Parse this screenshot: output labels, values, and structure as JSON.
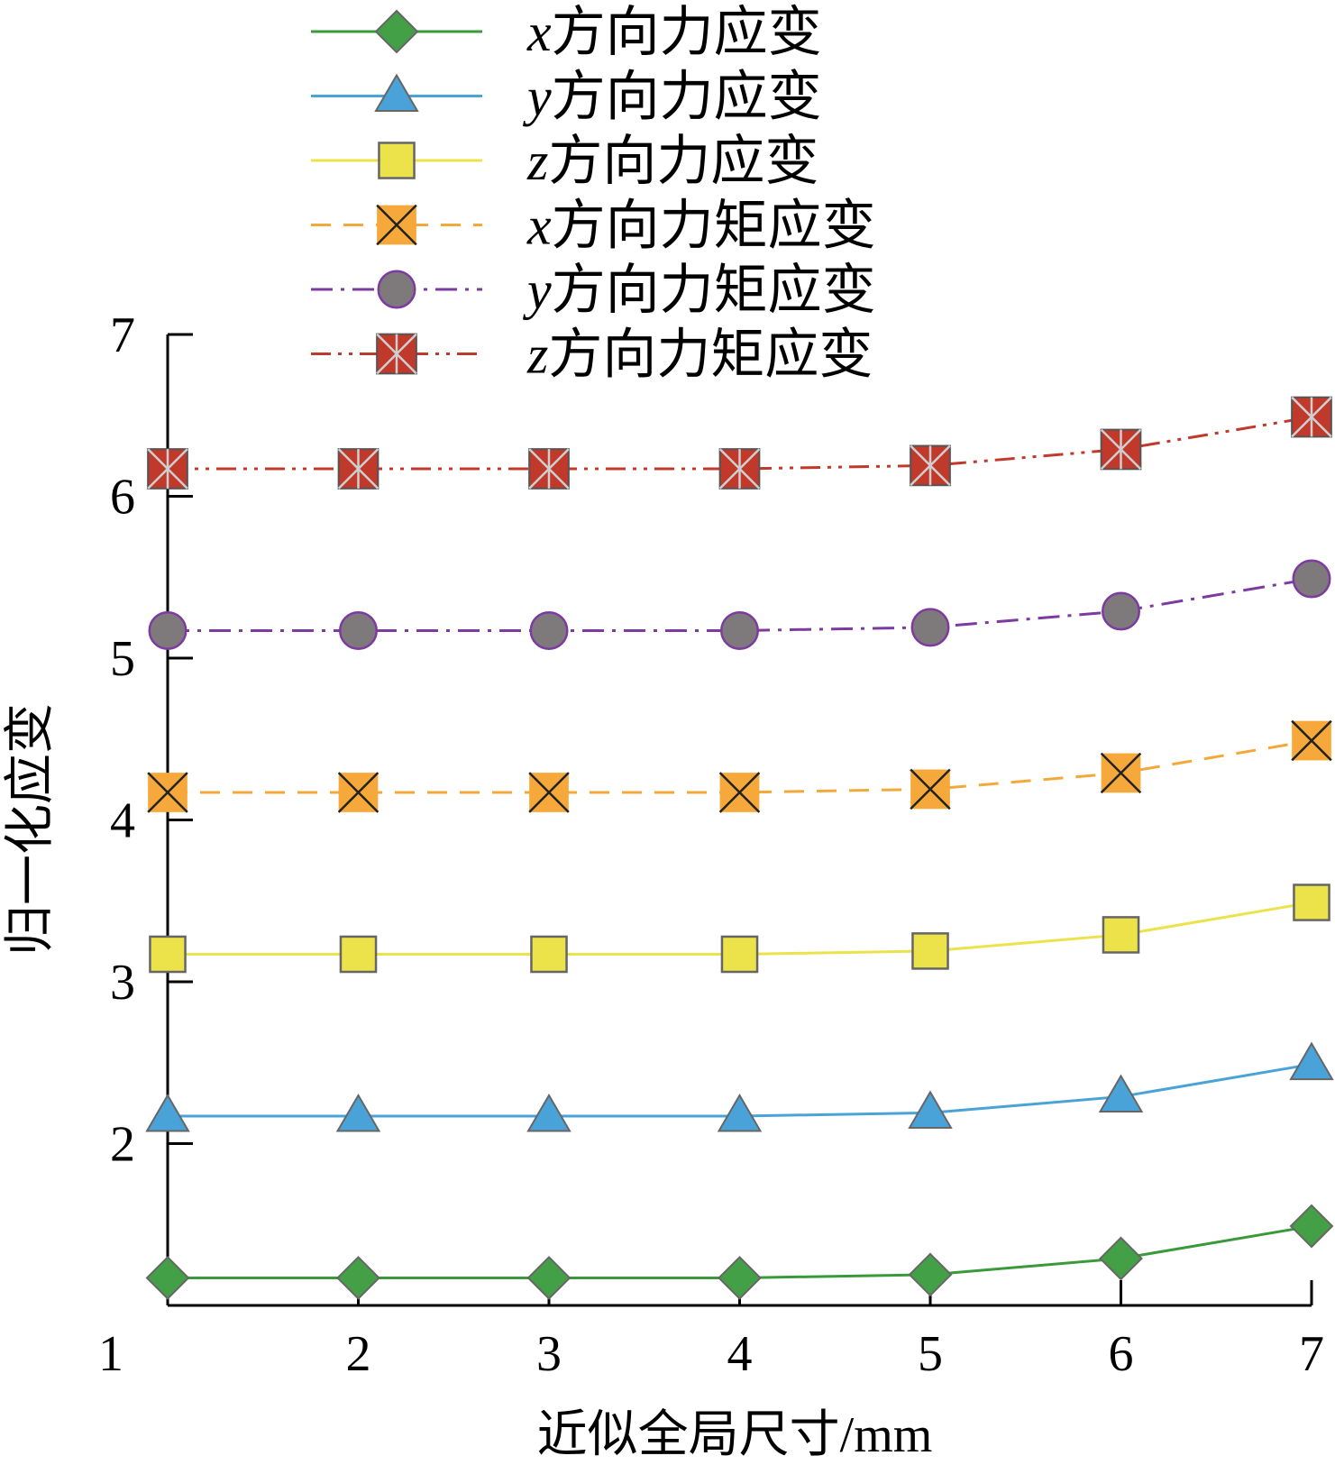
{
  "chart_data": {
    "type": "line",
    "xlabel": "近似全局尺寸/mm",
    "ylabel": "归一化应变",
    "x_ticks": [
      "1",
      "2",
      "3",
      "4",
      "5",
      "6",
      "7"
    ],
    "y_ticks": [
      "2",
      "3",
      "4",
      "5",
      "6",
      "7"
    ],
    "xlim": [
      1,
      7
    ],
    "ylim": [
      1,
      7
    ],
    "grid": false,
    "legend_position": "top",
    "x": [
      1,
      2,
      3,
      4,
      5,
      6,
      7
    ],
    "series": [
      {
        "name": "x方向力应变",
        "var": "x",
        "rest": "方向力应变",
        "color": "#3a9a3a",
        "marker": "diamond",
        "marker_fill": "#43a046",
        "dash": "solid",
        "values": [
          1.17,
          1.17,
          1.17,
          1.17,
          1.19,
          1.29,
          1.49
        ]
      },
      {
        "name": "y方向力应变",
        "var": "y",
        "rest": "方向力应变",
        "color": "#4aa3d8",
        "marker": "triangle",
        "marker_fill": "#4aa3d8",
        "dash": "solid",
        "values": [
          2.17,
          2.17,
          2.17,
          2.17,
          2.19,
          2.29,
          2.49
        ]
      },
      {
        "name": "z方向力应变",
        "var": "z",
        "rest": "方向力应变",
        "color": "#ece34a",
        "marker": "square",
        "marker_fill": "#ece34a",
        "dash": "solid",
        "values": [
          3.17,
          3.17,
          3.17,
          3.17,
          3.19,
          3.29,
          3.49
        ]
      },
      {
        "name": "x方向力矩应变",
        "var": "x",
        "rest": "方向力矩应变",
        "color": "#f3a93a",
        "marker": "x-square",
        "marker_fill": "#f6a93a",
        "dash": "dashed",
        "values": [
          4.17,
          4.17,
          4.17,
          4.17,
          4.19,
          4.29,
          4.49
        ]
      },
      {
        "name": "y方向力矩应变",
        "var": "y",
        "rest": "方向力矩应变",
        "color": "#7d3aa1",
        "marker": "circle",
        "marker_fill": "#7e7a7c",
        "dash": "dashdot",
        "values": [
          5.17,
          5.17,
          5.17,
          5.17,
          5.19,
          5.29,
          5.49
        ]
      },
      {
        "name": "z方向力矩应变",
        "var": "z",
        "rest": "方向力矩应变",
        "color": "#c0392b",
        "marker": "star-square",
        "marker_fill": "#c0392b",
        "dash": "dashdotdot",
        "values": [
          6.17,
          6.17,
          6.17,
          6.17,
          6.19,
          6.29,
          6.49
        ]
      }
    ]
  }
}
